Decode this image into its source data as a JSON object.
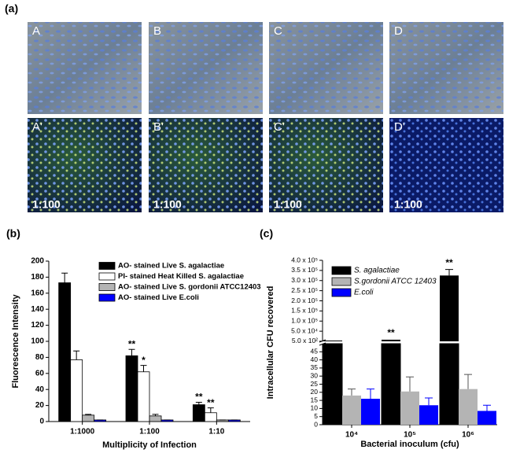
{
  "panel_a": {
    "panel_label": "(a)",
    "top_images": [
      {
        "label": "A"
      },
      {
        "label": "B"
      },
      {
        "label": "C"
      },
      {
        "label": "D"
      }
    ],
    "bottom_images": [
      {
        "label": "A'",
        "ratio": "1:100"
      },
      {
        "label": "B'",
        "ratio": "1:100"
      },
      {
        "label": "C'",
        "ratio": "1:100"
      },
      {
        "label": "D'",
        "ratio": "1:100"
      }
    ]
  },
  "chart_data": [
    {
      "type": "bar",
      "panel_label": "(b)",
      "y_label": "Fluorescence Intensity",
      "x_label": "Multiplicity of Infection",
      "categories": [
        "1:1000",
        "1:100",
        "1:10"
      ],
      "ylim": [
        0,
        200
      ],
      "yticks": [
        0,
        20,
        40,
        60,
        80,
        100,
        120,
        140,
        160,
        180,
        200
      ],
      "series": [
        {
          "name": "AO- stained Live S. agalactiae",
          "color": "#000000",
          "values": [
            173,
            82,
            21
          ],
          "errors": [
            12,
            8,
            3
          ],
          "significance": [
            null,
            "**",
            "**"
          ]
        },
        {
          "name": "PI- stained Heat Killed S. agalactiae",
          "color": "#ffffff",
          "values": [
            77,
            62,
            11
          ],
          "errors": [
            11,
            8,
            6
          ],
          "significance": [
            null,
            "*",
            "**"
          ]
        },
        {
          "name": "AO- stained Live S. gordonii ATCC12403",
          "color": "#b4b4b4",
          "values": [
            8,
            7,
            2
          ],
          "errors": [
            1,
            2,
            0
          ]
        },
        {
          "name": "AO- stained Live E.coli",
          "color": "#0000ff",
          "values": [
            2,
            2,
            2
          ],
          "errors": [
            0,
            0,
            0
          ]
        }
      ]
    },
    {
      "type": "broken-bar",
      "panel_label": "(c)",
      "y_label": "Intracellular CFU recovered",
      "x_label": "Bacterial inoculum (cfu)",
      "categories": [
        "10⁴",
        "10⁵",
        "10⁶"
      ],
      "ylim": [
        0,
        50
      ],
      "yticks": [
        0,
        5,
        10,
        15,
        20,
        25,
        30,
        35,
        40,
        45
      ],
      "ylim_upper": [
        0,
        400000
      ],
      "yticks_upper": [
        {
          "value": 500,
          "label": "5.0 x 10²"
        },
        {
          "value": 50000,
          "label": "5.0 x 10⁴"
        },
        {
          "value": 100000,
          "label": "1.0 x 10⁵"
        },
        {
          "value": 150000,
          "label": "1.5 x 10⁵"
        },
        {
          "value": 200000,
          "label": "2.0 x 10⁵"
        },
        {
          "value": 250000,
          "label": "2.5 x 10⁵"
        },
        {
          "value": 300000,
          "label": "3.0 x 10⁵"
        },
        {
          "value": 350000,
          "label": "3.5 x 10⁵"
        },
        {
          "value": 400000,
          "label": "4.0 x 10⁵"
        }
      ],
      "series": [
        {
          "name": "S. agalactiae",
          "color": "#000000",
          "values": [
            500,
            8000,
            325000
          ],
          "errors": [
            0,
            0,
            30000
          ],
          "significance": [
            null,
            "**",
            "**"
          ]
        },
        {
          "name": "S.gordonii ATCC 12403",
          "color": "#b4b4b4",
          "values": [
            18,
            20.5,
            22
          ],
          "errors": [
            4,
            9,
            9
          ]
        },
        {
          "name": "E.coli",
          "color": "#0000ff",
          "values": [
            16,
            12,
            8.5
          ],
          "errors": [
            6,
            4.5,
            3.5
          ]
        }
      ]
    }
  ]
}
